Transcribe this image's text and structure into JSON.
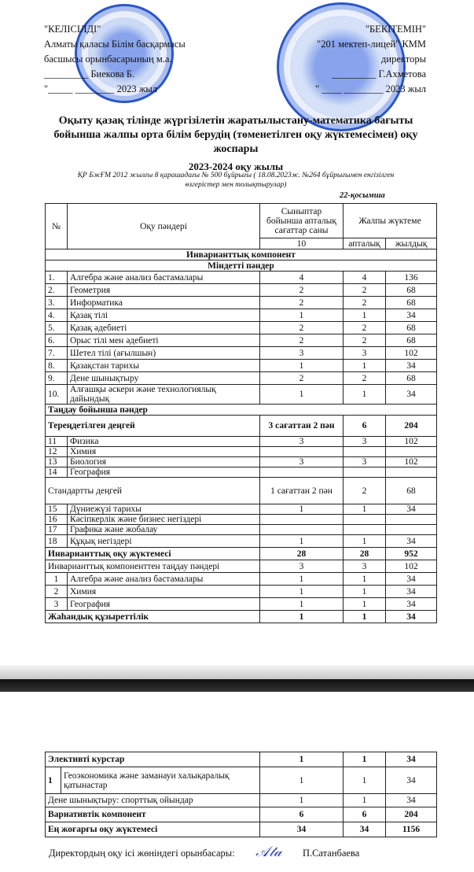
{
  "approval_left": {
    "lines": [
      "\"КЕЛІСІЛДІ\"",
      "Алматы қаласы Білім басқармасы",
      "басшысы орынбасарының м.а.",
      "_________ Биекова Б.",
      "\"_____ ________ 2023 жыл"
    ]
  },
  "approval_right": {
    "lines": [
      "\"БЕКІТЕМІН\"",
      "\"201 мектеп-лицей\" КММ",
      "директоры",
      "_________ Г.Ахметова",
      "\" ____ ________ 2023 жыл"
    ]
  },
  "stamp_colors": {
    "ink": "#2a56c8"
  },
  "title": {
    "line1": "Оқыту қазақ тілінде жүргізілетін жаратылыстану-математика бағыты",
    "line2": "бойынша жалпы орта білім берудің  (төменетілген оқу жүктемесімен) оқу",
    "line3": "жоспары",
    "year": "2023-2024 оқу жылы",
    "note1": "ҚР БжҒМ  2012 жылғы 8 қарашадағы № 500 бұйрығы ( 18.08.2023ж. №264 бұйрығымен енгізілген",
    "note2": "өзгерістер мен толықтырулар)",
    "appendix": "22-қосымша"
  },
  "table_header": {
    "num": "№",
    "subjects": "Оқу пәндері",
    "classes": "Сыныптар бойынша апталық сағаттар саны",
    "grade": "10",
    "total": "Жалпы жүктеме",
    "weekly": "апталық",
    "yearly": "жылдық"
  },
  "table1": [
    {
      "type": "section",
      "label": "Инварианттық компонент"
    },
    {
      "type": "section",
      "label": "Міндетті пәндер"
    },
    {
      "type": "row",
      "num": "1.",
      "name": "Алгебра және анализ бастамалары",
      "c": "4",
      "w": "4",
      "y": "136"
    },
    {
      "type": "row",
      "num": "2.",
      "name": "Геометрия",
      "c": "2",
      "w": "2",
      "y": "68"
    },
    {
      "type": "row",
      "num": "3.",
      "name": "Информатика",
      "c": "2",
      "w": "2",
      "y": "68"
    },
    {
      "type": "row",
      "num": "4.",
      "name": "Қазақ тілі",
      "c": "1",
      "w": "1",
      "y": "34"
    },
    {
      "type": "row",
      "num": "5.",
      "name": "Қазақ әдебиеті",
      "c": "2",
      "w": "2",
      "y": "68"
    },
    {
      "type": "row",
      "num": "6.",
      "name": "Орыс тілі мен әдебиеті",
      "c": "2",
      "w": "2",
      "y": "68"
    },
    {
      "type": "row",
      "num": "7.",
      "name": "Шетел тілі (ағылшын)",
      "c": "3",
      "w": "3",
      "y": "102"
    },
    {
      "type": "row",
      "num": "8.",
      "name": "Қазақстан тарихы",
      "c": "1",
      "w": "1",
      "y": "34"
    },
    {
      "type": "row",
      "num": "9.",
      "name": "Дене шынықтыру",
      "c": "2",
      "w": "2",
      "y": "68"
    },
    {
      "type": "row",
      "num": "10.",
      "name": "Алғашқы әскери және технологиялық дайындық",
      "c": "1",
      "w": "1",
      "y": "34",
      "tall": true
    },
    {
      "type": "sectionleft",
      "label": "Таңдау бойынша пәндер"
    },
    {
      "type": "group",
      "label": "Тереңдетілген деңгей",
      "c": "3 сағаттан 2 пән",
      "w": "6",
      "y": "204",
      "bold": true
    },
    {
      "type": "row",
      "num": "11",
      "name": "Физика",
      "c": "3",
      "w": "3",
      "y": "102"
    },
    {
      "type": "row",
      "num": "12",
      "name": "Химия",
      "c": "",
      "w": "",
      "y": ""
    },
    {
      "type": "row",
      "num": "13",
      "name": "Биология",
      "c": "3",
      "w": "3",
      "y": "102"
    },
    {
      "type": "row",
      "num": "14",
      "name": "География",
      "c": "",
      "w": "",
      "y": ""
    },
    {
      "type": "group",
      "label": "Стандартты деңгей",
      "c": "1 сағаттан 2 пән",
      "w": "2",
      "y": "68",
      "bold": false
    },
    {
      "type": "row",
      "num": "15",
      "name": "Дүниежүзі тарихы",
      "c": "1",
      "w": "1",
      "y": "34"
    },
    {
      "type": "row",
      "num": "16",
      "name": "Кәсіпкерлік және бизнес негіздері",
      "c": "",
      "w": "",
      "y": ""
    },
    {
      "type": "row",
      "num": "17",
      "name": "Графика және жобалау",
      "c": "",
      "w": "",
      "y": ""
    },
    {
      "type": "row",
      "num": "18",
      "name": "Құқық негіздері",
      "c": "1",
      "w": "1",
      "y": "34"
    },
    {
      "type": "total",
      "label": "Инварианттық оқу жүктемесі",
      "c": "28",
      "w": "28",
      "y": "952",
      "bold": true
    },
    {
      "type": "total",
      "label": "Инварианттық компоненттен таңдау пәндері",
      "c": "3",
      "w": "3",
      "y": "102",
      "bold": false
    },
    {
      "type": "row",
      "num": "1",
      "name": "Алгебра және анализ бастамалары",
      "c": "1",
      "w": "1",
      "y": "34",
      "center": true
    },
    {
      "type": "row",
      "num": "2",
      "name": "Химия",
      "c": "1",
      "w": "1",
      "y": "34",
      "center": true
    },
    {
      "type": "row",
      "num": "3",
      "name": "География",
      "c": "1",
      "w": "1",
      "y": "34",
      "center": true
    },
    {
      "type": "total",
      "label": "Жаһандық құзыреттілік",
      "c": "1",
      "w": "1",
      "y": "34",
      "bold": true
    }
  ],
  "table2": [
    {
      "type": "total",
      "label": "Элективті курстар",
      "c": "1",
      "w": "1",
      "y": "34",
      "bold": true
    },
    {
      "type": "row",
      "num": "1",
      "name": "Геоэкономика және заманауи халықаралық қатынастар",
      "c": "1",
      "w": "1",
      "y": "34",
      "tall": true,
      "boldnum": true
    },
    {
      "type": "total",
      "label": "Дене шынықтыру: спорттық ойындар",
      "c": "1",
      "w": "1",
      "y": "34",
      "bold": false
    },
    {
      "type": "total",
      "label": "Вариативтік компонент",
      "c": "6",
      "w": "6",
      "y": "204",
      "bold": true
    },
    {
      "type": "total",
      "label": "Ең жоғарғы оқу жүктемесі",
      "c": "34",
      "w": "34",
      "y": "1156",
      "bold": true
    }
  ],
  "footer": {
    "role": "Директордың оқу ісі  жөніндегі орынбасары:",
    "name": "П.Сатанбаева"
  }
}
